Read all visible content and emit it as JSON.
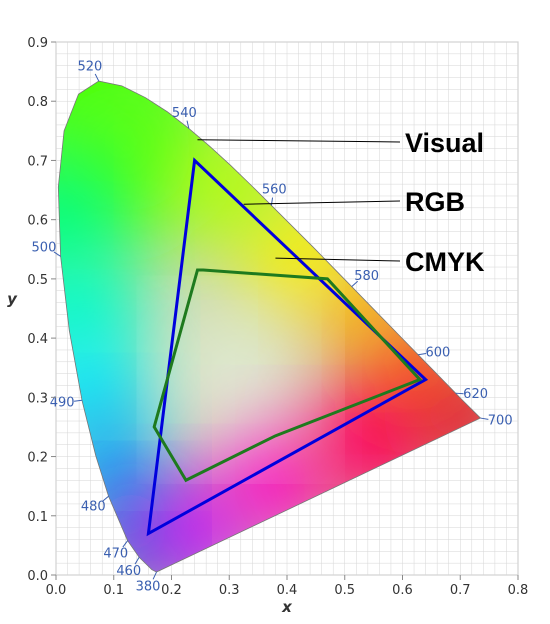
{
  "chart_data": {
    "type": "scatter",
    "title": "",
    "xlabel": "x",
    "ylabel": "y",
    "xlim": [
      0,
      0.8
    ],
    "ylim": [
      0,
      0.9
    ],
    "grid": true,
    "x_ticks": [
      "0.0",
      "0.1",
      "0.2",
      "0.3",
      "0.4",
      "0.5",
      "0.6",
      "0.7",
      "0.8"
    ],
    "y_ticks": [
      "0.0",
      "0.1",
      "0.2",
      "0.3",
      "0.4",
      "0.5",
      "0.6",
      "0.7",
      "0.8",
      "0.9"
    ],
    "spectral_locus": [
      [
        0.174,
        0.005
      ],
      [
        0.166,
        0.009
      ],
      [
        0.144,
        0.03
      ],
      [
        0.124,
        0.058
      ],
      [
        0.091,
        0.133
      ],
      [
        0.069,
        0.201
      ],
      [
        0.045,
        0.295
      ],
      [
        0.023,
        0.413
      ],
      [
        0.008,
        0.538
      ],
      [
        0.004,
        0.655
      ],
      [
        0.014,
        0.75
      ],
      [
        0.039,
        0.812
      ],
      [
        0.074,
        0.834
      ],
      [
        0.114,
        0.826
      ],
      [
        0.155,
        0.806
      ],
      [
        0.193,
        0.782
      ],
      [
        0.23,
        0.754
      ],
      [
        0.266,
        0.724
      ],
      [
        0.302,
        0.692
      ],
      [
        0.337,
        0.659
      ],
      [
        0.373,
        0.624
      ],
      [
        0.409,
        0.589
      ],
      [
        0.445,
        0.554
      ],
      [
        0.479,
        0.52
      ],
      [
        0.512,
        0.487
      ],
      [
        0.544,
        0.455
      ],
      [
        0.575,
        0.424
      ],
      [
        0.603,
        0.396
      ],
      [
        0.627,
        0.372
      ],
      [
        0.647,
        0.352
      ],
      [
        0.665,
        0.334
      ],
      [
        0.68,
        0.319
      ],
      [
        0.692,
        0.307
      ],
      [
        0.702,
        0.297
      ],
      [
        0.735,
        0.265
      ]
    ],
    "wavelength_labels": [
      {
        "label": "380",
        "x": 0.174,
        "y": 0.005
      },
      {
        "label": "460",
        "x": 0.144,
        "y": 0.03
      },
      {
        "label": "470",
        "x": 0.124,
        "y": 0.058
      },
      {
        "label": "480",
        "x": 0.091,
        "y": 0.133
      },
      {
        "label": "490",
        "x": 0.045,
        "y": 0.295
      },
      {
        "label": "500",
        "x": 0.008,
        "y": 0.538
      },
      {
        "label": "520",
        "x": 0.074,
        "y": 0.834
      },
      {
        "label": "540",
        "x": 0.23,
        "y": 0.754
      },
      {
        "label": "560",
        "x": 0.373,
        "y": 0.624
      },
      {
        "label": "580",
        "x": 0.512,
        "y": 0.487
      },
      {
        "label": "600",
        "x": 0.627,
        "y": 0.372
      },
      {
        "label": "620",
        "x": 0.692,
        "y": 0.307
      },
      {
        "label": "700",
        "x": 0.735,
        "y": 0.265
      }
    ],
    "series": [
      {
        "name": "Visual",
        "color": "#000000",
        "points": []
      },
      {
        "name": "RGB",
        "color": "#0000dd",
        "points": [
          [
            0.64,
            0.33
          ],
          [
            0.24,
            0.7
          ],
          [
            0.16,
            0.07
          ]
        ]
      },
      {
        "name": "CMYK",
        "color": "#1e7a1e",
        "points": [
          [
            0.255,
            0.515
          ],
          [
            0.245,
            0.515
          ],
          [
            0.17,
            0.25
          ],
          [
            0.225,
            0.16
          ],
          [
            0.38,
            0.235
          ],
          [
            0.63,
            0.33
          ],
          [
            0.47,
            0.5
          ]
        ]
      }
    ],
    "legend_position": "right"
  },
  "colors": {
    "label_blue": "#3a5fb0",
    "grid": "#d6d6d6",
    "axis": "#888888"
  }
}
